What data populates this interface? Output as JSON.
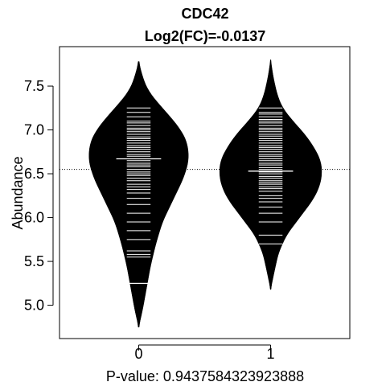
{
  "chart_data": {
    "type": "beanplot",
    "title": "CDC42",
    "subtitle": "Log2(FC)=-0.0137",
    "xlabel": "P-value: 0.9437584323923888",
    "ylabel": "Abundance",
    "categories": [
      "0",
      "1"
    ],
    "yticks": [
      5.0,
      5.5,
      6.0,
      6.5,
      7.0,
      7.5
    ],
    "ytick_labels": [
      "5.0",
      "5.5",
      "6.0",
      "6.5",
      "7.0",
      "7.5"
    ],
    "xlim": [
      -0.6,
      1.6
    ],
    "ylim": [
      4.62,
      7.95
    ],
    "overall_mean": 6.55,
    "grid": false,
    "colors": {
      "bean_fill": "#000000",
      "lines": "#ffffff",
      "background": "#ffffff"
    },
    "series": [
      {
        "category": "0",
        "mean": 6.67,
        "density_min": 4.75,
        "density_max": 7.78,
        "density_profile": [
          [
            4.75,
            0.0
          ],
          [
            4.95,
            0.03
          ],
          [
            5.2,
            0.06
          ],
          [
            5.45,
            0.09
          ],
          [
            5.7,
            0.13
          ],
          [
            5.95,
            0.18
          ],
          [
            6.2,
            0.26
          ],
          [
            6.45,
            0.34
          ],
          [
            6.65,
            0.38
          ],
          [
            6.85,
            0.37
          ],
          [
            7.0,
            0.32
          ],
          [
            7.15,
            0.24
          ],
          [
            7.3,
            0.15
          ],
          [
            7.45,
            0.07
          ],
          [
            7.6,
            0.03
          ],
          [
            7.78,
            0.0
          ]
        ],
        "points": [
          5.25,
          5.55,
          5.58,
          5.62,
          5.75,
          5.85,
          5.95,
          6.05,
          6.15,
          6.22,
          6.28,
          6.32,
          6.35,
          6.38,
          6.42,
          6.45,
          6.48,
          6.5,
          6.52,
          6.55,
          6.58,
          6.6,
          6.62,
          6.65,
          6.67,
          6.7,
          6.72,
          6.75,
          6.78,
          6.8,
          6.82,
          6.85,
          6.88,
          6.9,
          6.92,
          6.95,
          6.98,
          7.0,
          7.02,
          7.05,
          7.08,
          7.1,
          7.15,
          7.2,
          7.25
        ]
      },
      {
        "category": "1",
        "mean": 6.53,
        "density_min": 5.18,
        "density_max": 7.8,
        "density_profile": [
          [
            5.18,
            0.0
          ],
          [
            5.4,
            0.03
          ],
          [
            5.6,
            0.06
          ],
          [
            5.8,
            0.12
          ],
          [
            6.0,
            0.22
          ],
          [
            6.2,
            0.32
          ],
          [
            6.35,
            0.37
          ],
          [
            6.5,
            0.39
          ],
          [
            6.65,
            0.38
          ],
          [
            6.8,
            0.33
          ],
          [
            6.95,
            0.26
          ],
          [
            7.1,
            0.17
          ],
          [
            7.25,
            0.09
          ],
          [
            7.4,
            0.05
          ],
          [
            7.6,
            0.02
          ],
          [
            7.8,
            0.0
          ]
        ],
        "points": [
          5.7,
          5.8,
          5.95,
          6.05,
          6.12,
          6.18,
          6.22,
          6.25,
          6.3,
          6.33,
          6.35,
          6.38,
          6.4,
          6.42,
          6.45,
          6.47,
          6.5,
          6.52,
          6.55,
          6.57,
          6.6,
          6.62,
          6.65,
          6.67,
          6.7,
          6.72,
          6.75,
          6.78,
          6.8,
          6.82,
          6.85,
          6.88,
          6.9,
          6.93,
          6.95,
          6.98,
          7.0,
          7.02,
          7.05,
          7.08,
          7.1,
          7.12,
          7.15,
          7.18,
          7.2,
          7.25
        ]
      }
    ]
  }
}
